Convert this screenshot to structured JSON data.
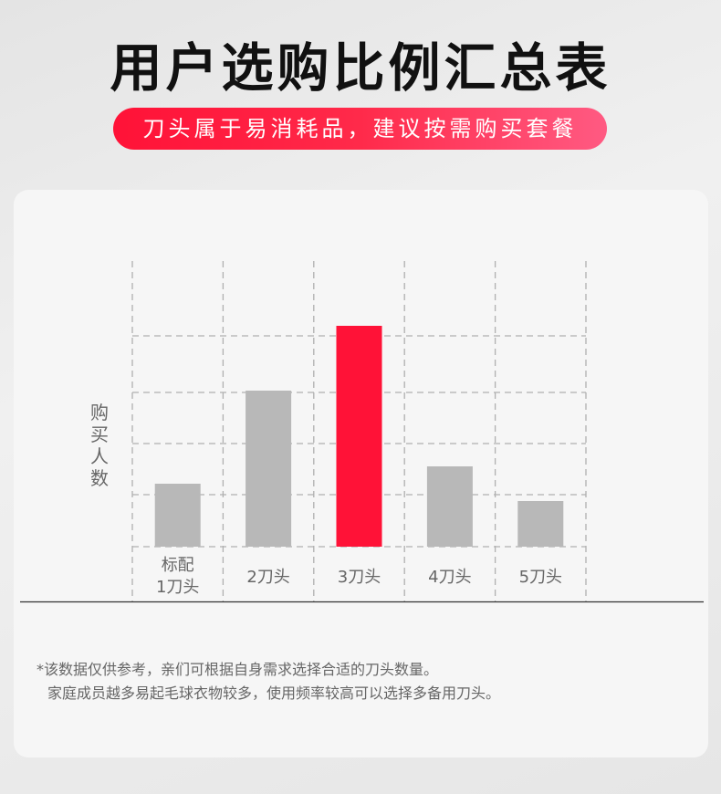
{
  "header": {
    "title": "用户选购比例汇总表",
    "subtitle": "刀头属于易消耗品，建议按需购买套餐"
  },
  "chart_data": {
    "type": "bar",
    "title": "",
    "xlabel": "",
    "ylabel": "购买人数",
    "categories": [
      "标配\n1刀头",
      "2刀头",
      "3刀头",
      "4刀头",
      "5刀头"
    ],
    "values": [
      69,
      171,
      242,
      88,
      50
    ],
    "ylim": [
      0,
      313
    ],
    "grid": true,
    "highlight_index": 2,
    "colors": {
      "default": "#b8b8b8",
      "highlight": "#ff1237",
      "grid": "#b0b0b0"
    }
  },
  "footnote": {
    "line1": "*该数据仅供参考，亲们可根据自身需求选择合适的刀头数量。",
    "line2": "家庭成员越多易起毛球衣物较多，使用频率较高可以选择多备用刀头。"
  }
}
